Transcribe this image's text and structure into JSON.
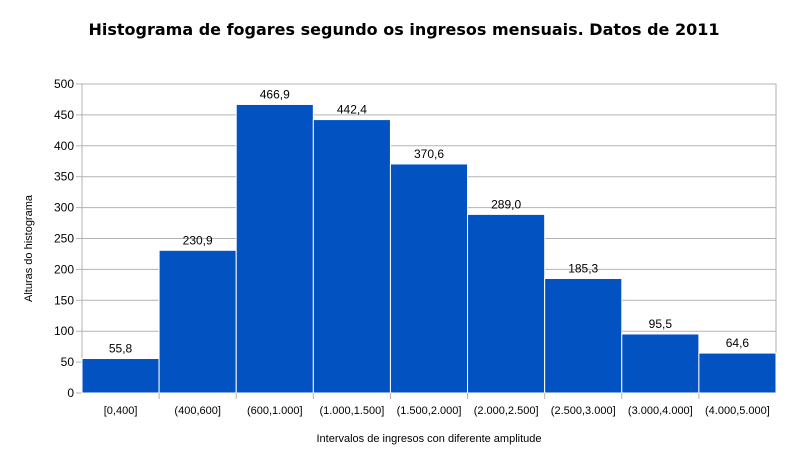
{
  "chart_data": {
    "type": "bar",
    "title": "Histograma de fogares segundo os ingresos mensuais. Datos de 2011",
    "xlabel": "Intervalos de ingresos con diferente amplitude",
    "ylabel": "Alturas do histograma",
    "categories": [
      "[0,400]",
      "(400,600]",
      "(600,1.000]",
      "(1.000,1.500]",
      "(1.500,2.000]",
      "(2.000,2.500]",
      "(2.500,3.000]",
      "(3.000,4.000]",
      "(4.000,5.000]"
    ],
    "values": [
      55.8,
      230.9,
      466.9,
      442.4,
      370.6,
      289.0,
      185.3,
      95.5,
      64.6
    ],
    "value_labels": [
      "55,8",
      "230,9",
      "466,9",
      "442,4",
      "370,6",
      "289,0",
      "185,3",
      "95,5",
      "64,6"
    ],
    "ylim": [
      0,
      500
    ],
    "yticks": [
      0,
      50,
      100,
      150,
      200,
      250,
      300,
      350,
      400,
      450,
      500
    ],
    "grid": true,
    "bar_color": "#0352c2",
    "grid_color": "#b3b3b3"
  }
}
